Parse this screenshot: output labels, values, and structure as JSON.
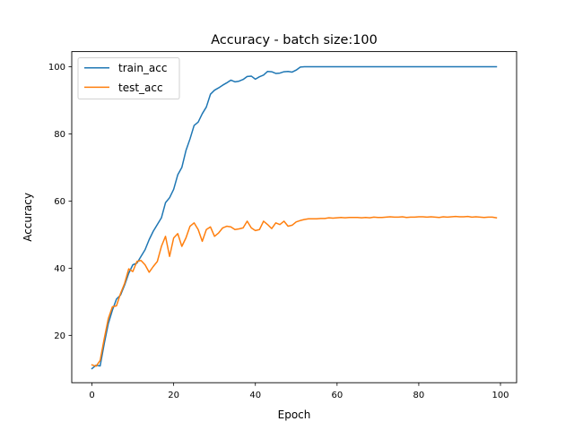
{
  "chart_data": {
    "type": "line",
    "title": "Accuracy - batch size:100",
    "xlabel": "Epoch",
    "ylabel": "Accuracy",
    "xlim": [
      -4.95,
      103.95
    ],
    "ylim": [
      5.9,
      104.5
    ],
    "xticks": [
      0,
      20,
      40,
      60,
      80,
      100
    ],
    "yticks": [
      20,
      40,
      60,
      80,
      100
    ],
    "grid": false,
    "legend_position": "top-left",
    "x": [
      0,
      1,
      2,
      3,
      4,
      5,
      6,
      7,
      8,
      9,
      10,
      11,
      12,
      13,
      14,
      15,
      16,
      17,
      18,
      19,
      20,
      21,
      22,
      23,
      24,
      25,
      26,
      27,
      28,
      29,
      30,
      31,
      32,
      33,
      34,
      35,
      36,
      37,
      38,
      39,
      40,
      41,
      42,
      43,
      44,
      45,
      46,
      47,
      48,
      49,
      50,
      51,
      52,
      53,
      54,
      55,
      56,
      57,
      58,
      59,
      60,
      61,
      62,
      63,
      64,
      65,
      66,
      67,
      68,
      69,
      70,
      71,
      72,
      73,
      74,
      75,
      76,
      77,
      78,
      79,
      80,
      81,
      82,
      83,
      84,
      85,
      86,
      87,
      88,
      89,
      90,
      91,
      92,
      93,
      94,
      95,
      96,
      97,
      98,
      99
    ],
    "series": [
      {
        "name": "train_acc",
        "color": "#1f77b4",
        "values": [
          10.1,
          11.1,
          10.9,
          17.5,
          23.5,
          27.5,
          30.8,
          32.0,
          35.0,
          38.5,
          41.0,
          41.5,
          43.5,
          45.5,
          48.5,
          51.0,
          53.0,
          55.0,
          59.5,
          61.0,
          63.5,
          67.8,
          70.0,
          75.0,
          78.5,
          82.5,
          83.5,
          86.0,
          88.0,
          91.8,
          93.0,
          93.7,
          94.5,
          95.2,
          96.0,
          95.5,
          95.7,
          96.2,
          97.1,
          97.2,
          96.3,
          97.0,
          97.5,
          98.6,
          98.5,
          98.0,
          98.1,
          98.5,
          98.6,
          98.4,
          99.0,
          99.9,
          100.0,
          100.0,
          100.0,
          100.0,
          100.0,
          100.0,
          100.0,
          100.0,
          100.0,
          100.0,
          100.0,
          100.0,
          100.0,
          100.0,
          100.0,
          100.0,
          100.0,
          100.0,
          100.0,
          100.0,
          100.0,
          100.0,
          100.0,
          100.0,
          100.0,
          100.0,
          100.0,
          100.0,
          100.0,
          100.0,
          100.0,
          100.0,
          100.0,
          100.0,
          100.0,
          100.0,
          100.0,
          100.0,
          100.0,
          100.0,
          100.0,
          100.0,
          100.0,
          100.0,
          100.0,
          100.0,
          100.0,
          100.0
        ]
      },
      {
        "name": "test_acc",
        "color": "#ff7f0e",
        "values": [
          11.2,
          10.8,
          12.5,
          19.0,
          25.0,
          28.5,
          28.8,
          32.5,
          35.5,
          39.8,
          39.0,
          42.0,
          42.3,
          41.0,
          38.8,
          40.5,
          42.0,
          46.5,
          49.5,
          43.5,
          49.0,
          50.3,
          46.5,
          49.0,
          52.5,
          53.5,
          51.5,
          48.0,
          51.5,
          52.3,
          49.5,
          50.5,
          52.0,
          52.5,
          52.3,
          51.5,
          51.7,
          52.0,
          54.0,
          52.0,
          51.2,
          51.5,
          54.0,
          53.0,
          51.8,
          53.5,
          53.0,
          54.0,
          52.5,
          52.8,
          53.8,
          54.2,
          54.5,
          54.7,
          54.7,
          54.7,
          54.8,
          54.8,
          55.0,
          54.9,
          55.0,
          55.1,
          55.0,
          55.1,
          55.1,
          55.1,
          55.0,
          55.1,
          55.0,
          55.2,
          55.1,
          55.1,
          55.2,
          55.3,
          55.2,
          55.2,
          55.3,
          55.1,
          55.2,
          55.2,
          55.3,
          55.3,
          55.2,
          55.3,
          55.2,
          55.1,
          55.3,
          55.2,
          55.3,
          55.4,
          55.3,
          55.3,
          55.4,
          55.2,
          55.3,
          55.2,
          55.1,
          55.2,
          55.2,
          55.0
        ]
      }
    ]
  }
}
